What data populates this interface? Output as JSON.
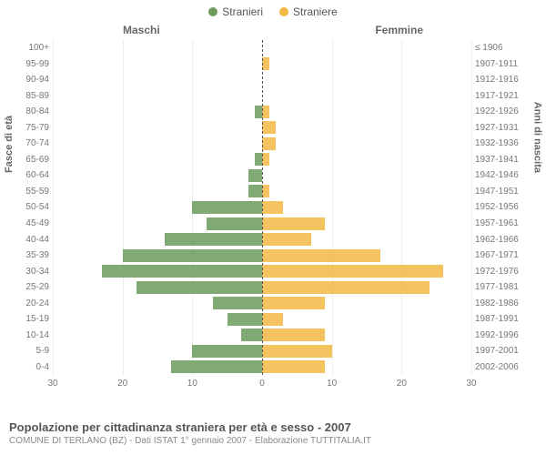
{
  "legend": {
    "male_label": "Stranieri",
    "female_label": "Straniere",
    "male_color": "#6b9a5b",
    "female_color": "#f2b843"
  },
  "headers": {
    "left": "Maschi",
    "right": "Femmine",
    "left_axis_title": "Fasce di età",
    "right_axis_title": "Anni di nascita"
  },
  "chart": {
    "type": "population-pyramid",
    "x_max": 30,
    "x_ticks": [
      30,
      20,
      10,
      0,
      10,
      20,
      30
    ],
    "background_color": "#ffffff",
    "grid_color": "#eeeeee",
    "center_line_color": "#555555",
    "bar_opacity": 0.85,
    "rows": [
      {
        "age": "100+",
        "birth": "≤ 1906",
        "m": 0,
        "f": 0
      },
      {
        "age": "95-99",
        "birth": "1907-1911",
        "m": 0,
        "f": 1
      },
      {
        "age": "90-94",
        "birth": "1912-1916",
        "m": 0,
        "f": 0
      },
      {
        "age": "85-89",
        "birth": "1917-1921",
        "m": 0,
        "f": 0
      },
      {
        "age": "80-84",
        "birth": "1922-1926",
        "m": 1,
        "f": 1
      },
      {
        "age": "75-79",
        "birth": "1927-1931",
        "m": 0,
        "f": 2
      },
      {
        "age": "70-74",
        "birth": "1932-1936",
        "m": 0,
        "f": 2
      },
      {
        "age": "65-69",
        "birth": "1937-1941",
        "m": 1,
        "f": 1
      },
      {
        "age": "60-64",
        "birth": "1942-1946",
        "m": 2,
        "f": 0
      },
      {
        "age": "55-59",
        "birth": "1947-1951",
        "m": 2,
        "f": 1
      },
      {
        "age": "50-54",
        "birth": "1952-1956",
        "m": 10,
        "f": 3
      },
      {
        "age": "45-49",
        "birth": "1957-1961",
        "m": 8,
        "f": 9
      },
      {
        "age": "40-44",
        "birth": "1962-1966",
        "m": 14,
        "f": 7
      },
      {
        "age": "35-39",
        "birth": "1967-1971",
        "m": 20,
        "f": 17
      },
      {
        "age": "30-34",
        "birth": "1972-1976",
        "m": 23,
        "f": 26
      },
      {
        "age": "25-29",
        "birth": "1977-1981",
        "m": 18,
        "f": 24
      },
      {
        "age": "20-24",
        "birth": "1982-1986",
        "m": 7,
        "f": 9
      },
      {
        "age": "15-19",
        "birth": "1987-1991",
        "m": 5,
        "f": 3
      },
      {
        "age": "10-14",
        "birth": "1992-1996",
        "m": 3,
        "f": 9
      },
      {
        "age": "5-9",
        "birth": "1997-2001",
        "m": 10,
        "f": 10
      },
      {
        "age": "0-4",
        "birth": "2002-2006",
        "m": 13,
        "f": 9
      }
    ]
  },
  "footer": {
    "title": "Popolazione per cittadinanza straniera per età e sesso - 2007",
    "subtitle": "COMUNE DI TERLANO (BZ) - Dati ISTAT 1° gennaio 2007 - Elaborazione TUTTITALIA.IT"
  }
}
